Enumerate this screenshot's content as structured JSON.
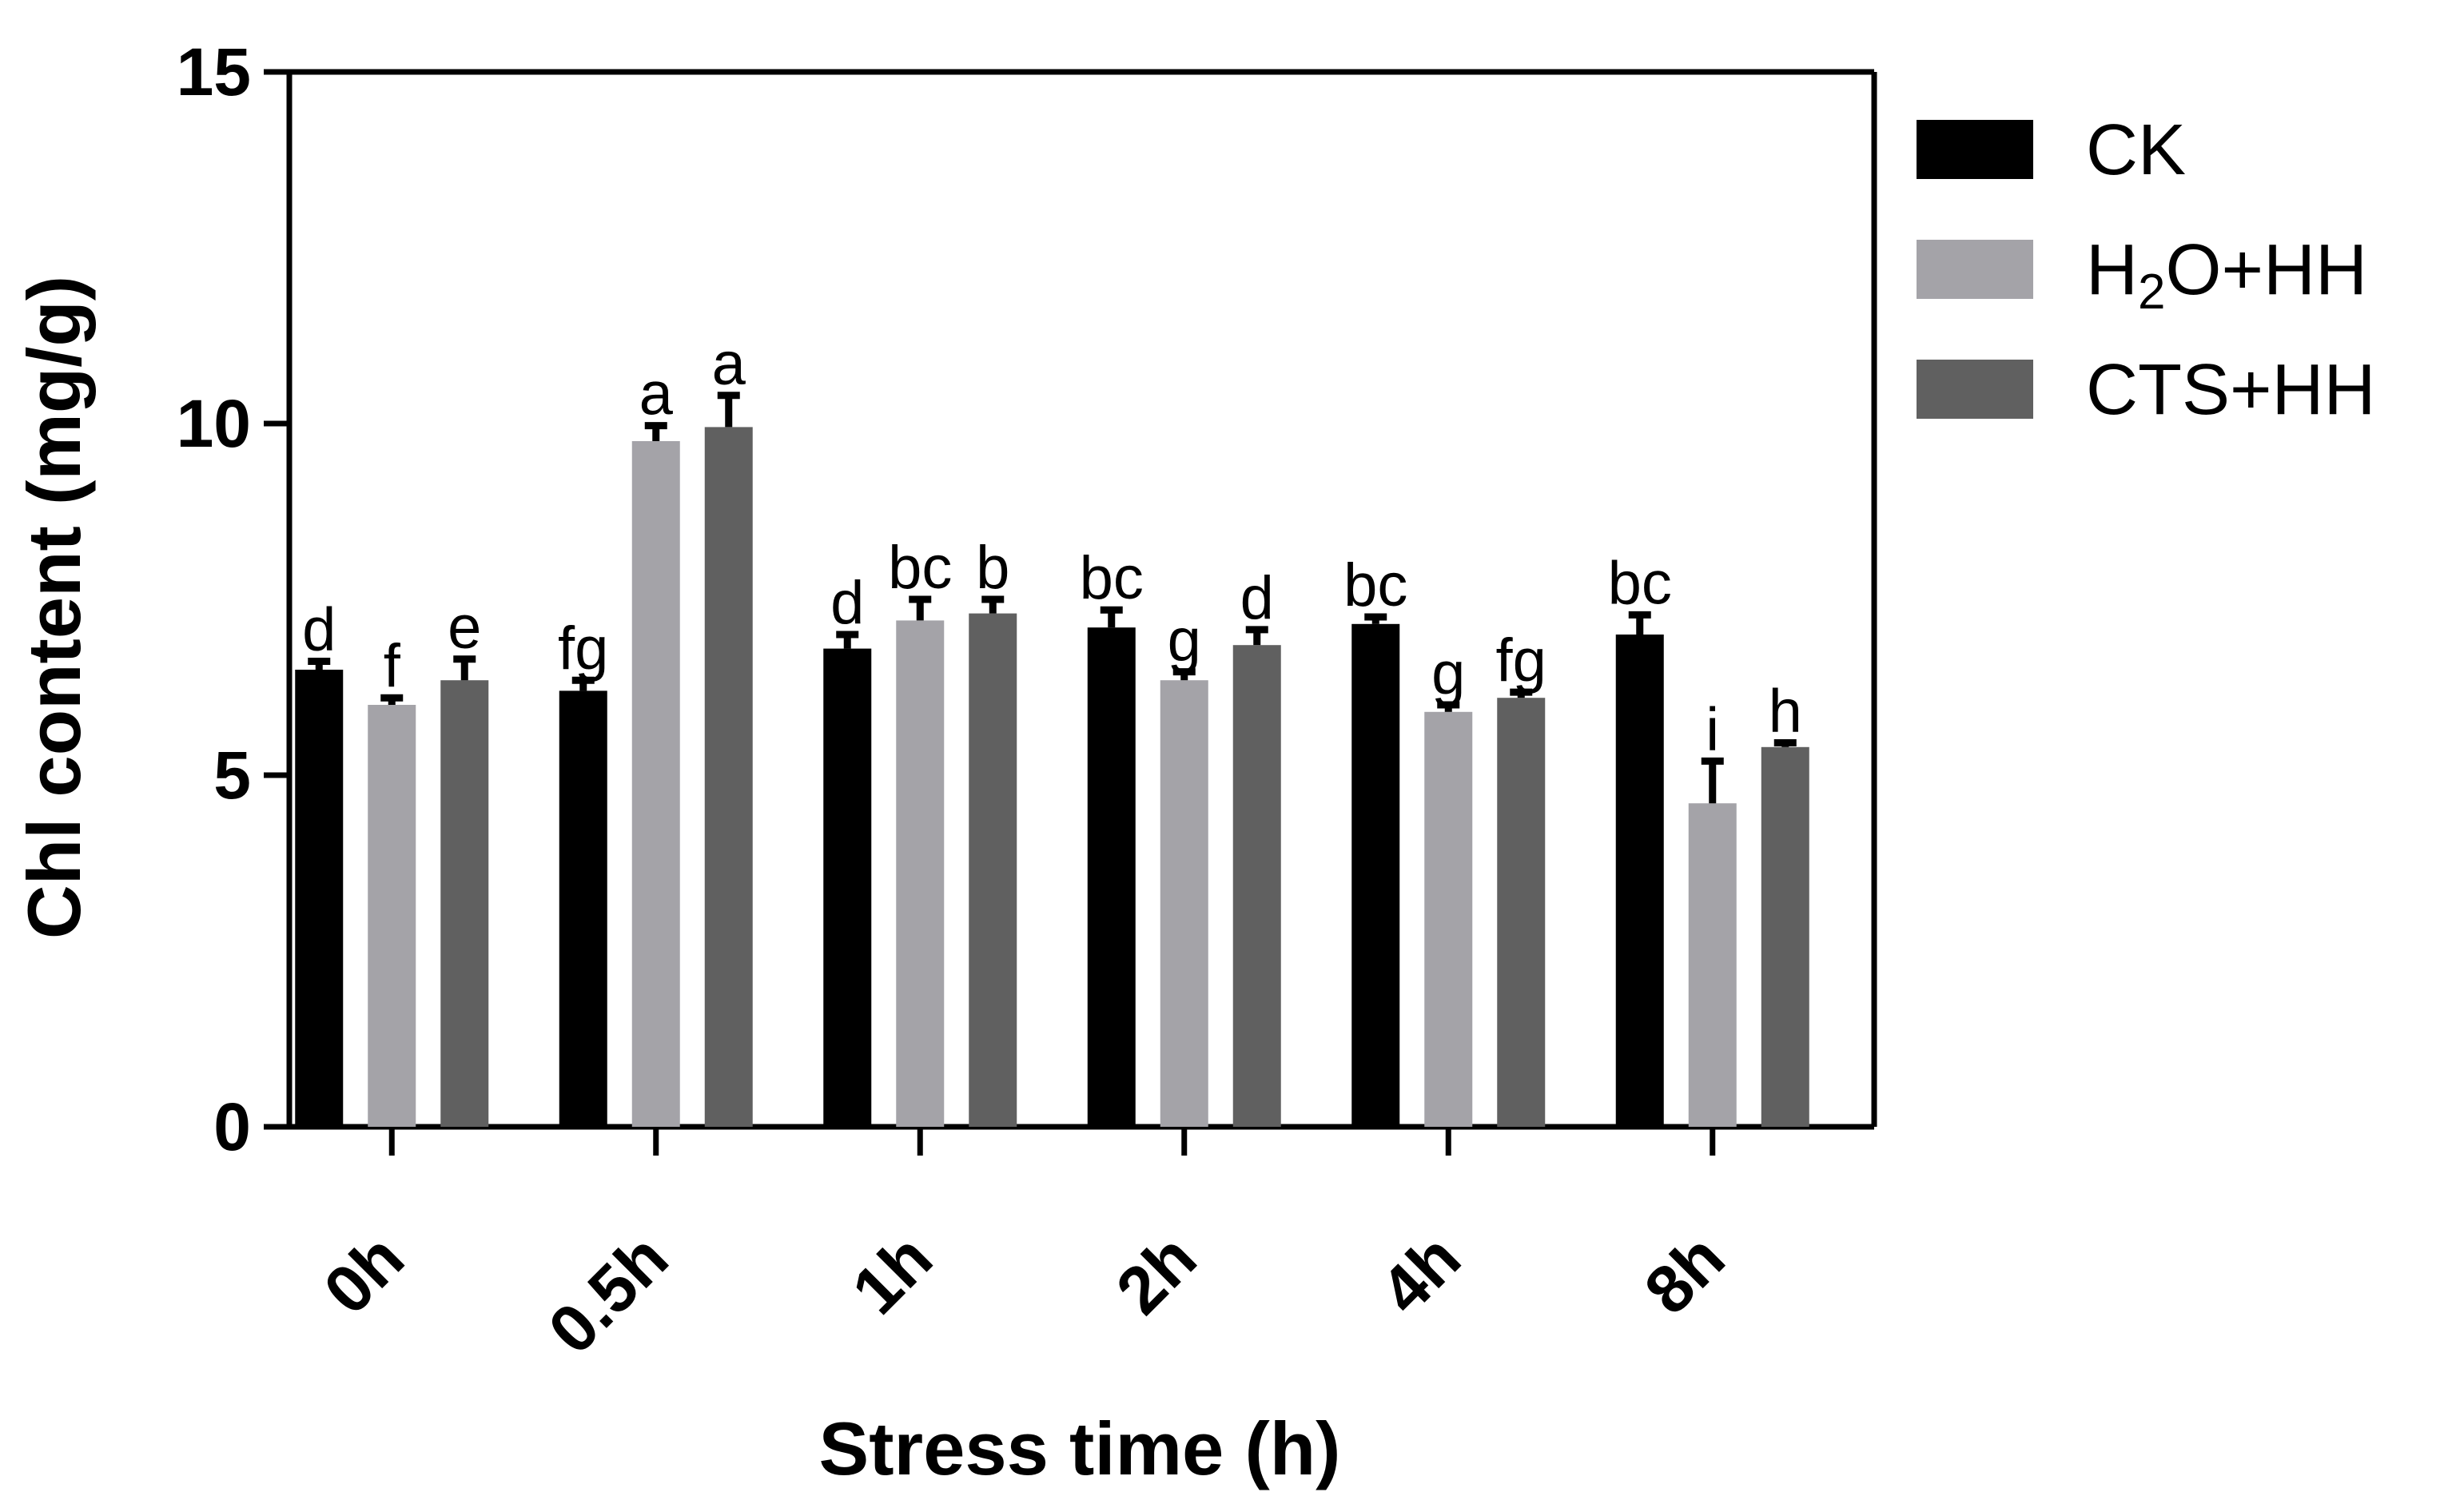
{
  "chart_data": {
    "type": "bar",
    "title": "",
    "xlabel": "Stress time (h)",
    "ylabel": "Chl content (mg/g)",
    "ylim": [
      0,
      15
    ],
    "yticks": [
      0,
      5,
      10,
      15
    ],
    "categories": [
      "0h",
      "0.5h",
      "1h",
      "2h",
      "4h",
      "8h"
    ],
    "legend_position": "right",
    "series": [
      {
        "name": "CK",
        "color": "#000000",
        "values": [
          6.5,
          6.2,
          6.8,
          7.1,
          7.15,
          7.0
        ],
        "errors": [
          0.12,
          0.15,
          0.2,
          0.25,
          0.1,
          0.28
        ],
        "labels": [
          "d",
          "fg",
          "d",
          "bc",
          "bc",
          "bc"
        ]
      },
      {
        "name": "H2O+HH",
        "legend_main": "H",
        "legend_sub": "2",
        "legend_rest": "O+HH",
        "color": "#a4a3a8",
        "values": [
          6.0,
          9.75,
          7.2,
          6.35,
          5.9,
          4.6
        ],
        "errors": [
          0.1,
          0.22,
          0.3,
          0.12,
          0.1,
          0.6
        ],
        "labels": [
          "f",
          "a",
          "bc",
          "g",
          "g",
          "i"
        ]
      },
      {
        "name": "CTS+HH",
        "color": "#606060",
        "values": [
          6.35,
          9.95,
          7.3,
          6.85,
          6.1,
          5.4
        ],
        "errors": [
          0.3,
          0.45,
          0.2,
          0.22,
          0.08,
          0.06
        ],
        "labels": [
          "e",
          "a",
          "b",
          "d",
          "fg",
          "h"
        ]
      }
    ]
  }
}
